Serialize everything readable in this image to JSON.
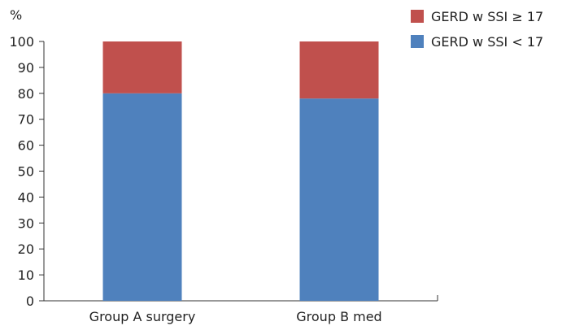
{
  "chart_data": {
    "type": "bar",
    "stacked": true,
    "ylabel": "%",
    "ylim": [
      0,
      100
    ],
    "yticks": [
      0,
      10,
      20,
      30,
      40,
      50,
      60,
      70,
      80,
      90,
      100
    ],
    "categories": [
      "Group A surgery",
      "Group B med"
    ],
    "series": [
      {
        "name": "GERD w SSI < 17",
        "values": [
          80,
          78
        ],
        "color": "#4f81bd"
      },
      {
        "name": "GERD w SSI ≥ 17",
        "values": [
          20,
          22
        ],
        "color": "#c0504d"
      }
    ],
    "legend": {
      "position": "top-right",
      "entries": [
        "GERD w SSI ≥ 17",
        "GERD w SSI < 17"
      ]
    },
    "grid": false
  }
}
